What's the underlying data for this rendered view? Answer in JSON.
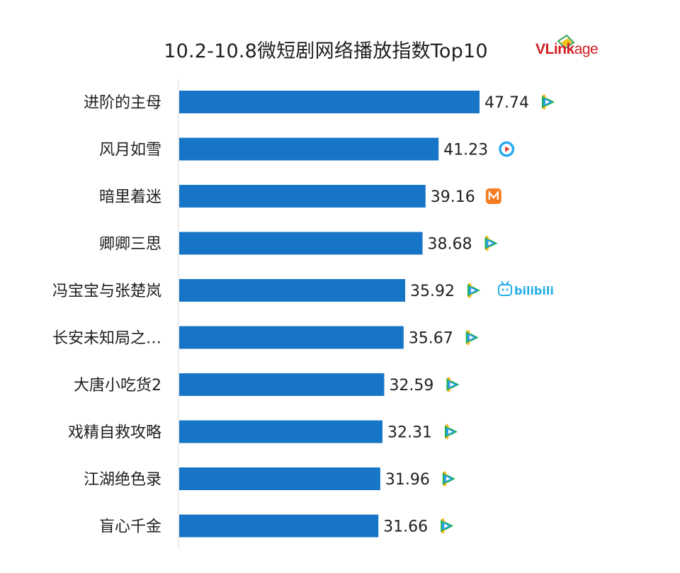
{
  "chart_data": {
    "type": "bar",
    "orientation": "horizontal",
    "title": "10.2-10.8微短剧网络播放指数Top10",
    "categories": [
      "进阶的主母",
      "风月如雪",
      "暗里着迷",
      "卿卿三思",
      "冯宝宝与张楚岚",
      "长安未知局之…",
      "大唐小吃货2",
      "戏精自救攻略",
      "江湖绝色录",
      "盲心千金"
    ],
    "values": [
      47.74,
      41.23,
      39.16,
      38.68,
      35.92,
      35.67,
      32.59,
      32.31,
      31.96,
      31.66
    ],
    "value_labels": [
      "47.74",
      "41.23",
      "39.16",
      "38.68",
      "35.92",
      "35.67",
      "32.59",
      "32.31",
      "31.96",
      "31.66"
    ],
    "platforms": [
      [
        "tencent-video-icon"
      ],
      [
        "youku-icon"
      ],
      [
        "mango-tv-icon"
      ],
      [
        "tencent-video-icon"
      ],
      [
        "tencent-video-icon",
        "bilibili-logo"
      ],
      [
        "tencent-video-icon"
      ],
      [
        "tencent-video-icon"
      ],
      [
        "tencent-video-icon"
      ],
      [
        "tencent-video-icon"
      ],
      [
        "tencent-video-icon"
      ]
    ],
    "xlim": [
      0,
      47.74
    ],
    "grid": false,
    "legend": "none",
    "bar_color": "#1775c7"
  },
  "brand": {
    "text_bold": "VLink",
    "text_light": "age",
    "color": "#cf1f25"
  },
  "bilibili_text": "bilibili"
}
